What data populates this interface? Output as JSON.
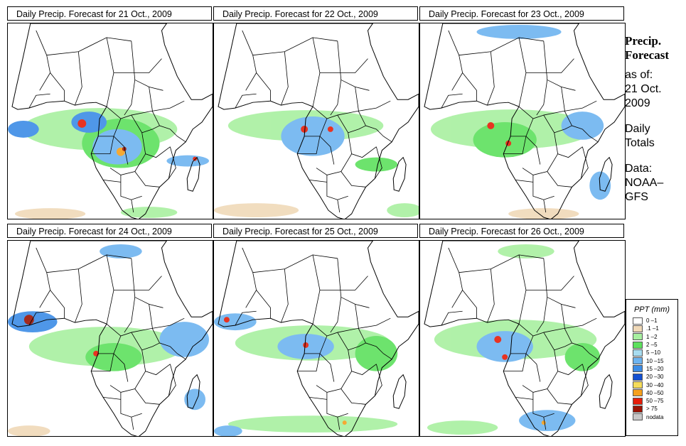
{
  "panels": [
    {
      "title": "Daily Precip. Forecast for  21 Oct., 2009"
    },
    {
      "title": "Daily Precip. Forecast for  22 Oct., 2009"
    },
    {
      "title": "Daily Precip. Forecast for  23 Oct., 2009"
    },
    {
      "title": "Daily Precip. Forecast for  24 Oct., 2009"
    },
    {
      "title": "Daily Precip. Forecast for  25 Oct., 2009"
    },
    {
      "title": "Daily Precip. Forecast for  26 Oct., 2009"
    }
  ],
  "side": {
    "title_line1": "Precip.",
    "title_line2": "Forecast",
    "asof_line1": "as of:",
    "asof_line2": "21 Oct.",
    "asof_line3": "2009",
    "totals_line1": "Daily",
    "totals_line2": "Totals",
    "data_line1": "Data:",
    "data_line2": "NOAA–",
    "data_line3": "GFS"
  },
  "legend": {
    "title": "PPT (mm)",
    "items": [
      {
        "label": "0 –1",
        "color": "#ffffff"
      },
      {
        "label": ".1 –1",
        "color": "#f0d9b8"
      },
      {
        "label": "1 –2",
        "color": "#a8f0a0"
      },
      {
        "label": "2 –5",
        "color": "#5ee05e"
      },
      {
        "label": "5 –10",
        "color": "#a8dcf0"
      },
      {
        "label": "10 –15",
        "color": "#6eb4f0"
      },
      {
        "label": "15 –20",
        "color": "#3c8ce6"
      },
      {
        "label": "20 –30",
        "color": "#1450d2"
      },
      {
        "label": "30 –40",
        "color": "#f5dc5a"
      },
      {
        "label": "40 –50",
        "color": "#f5a01e"
      },
      {
        "label": "50 –75",
        "color": "#e61e0a"
      },
      {
        "label": "> 75",
        "color": "#9b1405"
      },
      {
        "label": "nodata",
        "color": "#c8c8c8"
      }
    ]
  }
}
